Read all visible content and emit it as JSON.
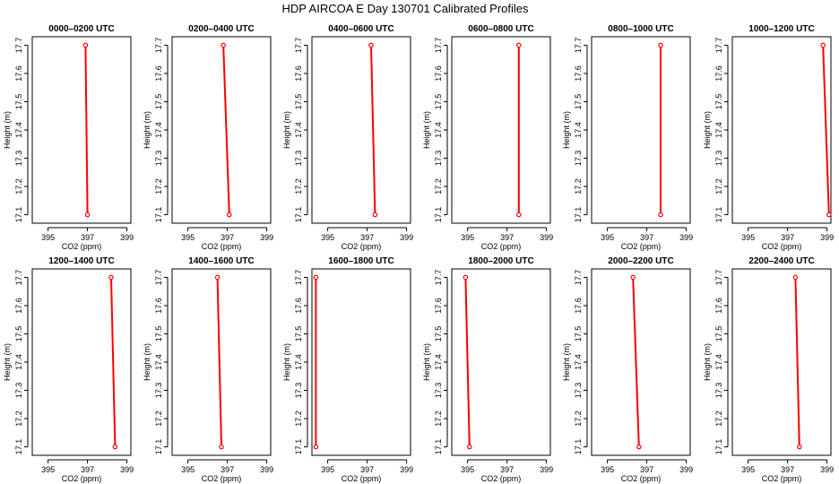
{
  "title": "HDP AIRCOA E  Day 130701  Calibrated Profiles",
  "colors": {
    "series": "#ff0000",
    "axis": "#000000",
    "background": "#ffffff"
  },
  "chart_data": {
    "type": "line",
    "layout": "small-multiples",
    "title": "HDP AIRCOA E  Day 130701  Calibrated Profiles",
    "xlabel": "CO2 (ppm)",
    "ylabel": "Height (m)",
    "xlim": [
      394.2,
      399.2
    ],
    "ylim": [
      17.07,
      17.73
    ],
    "xticks": [
      395,
      397,
      399
    ],
    "yticks": [
      17.1,
      17.2,
      17.3,
      17.4,
      17.5,
      17.6,
      17.7
    ],
    "xtick_labels": [
      "395",
      "397",
      "399"
    ],
    "ytick_labels": [
      "17.1",
      "17.2",
      "17.3",
      "17.4",
      "17.5",
      "17.6",
      "17.7"
    ],
    "grid": false,
    "panels": [
      {
        "title": "0000–0200 UTC",
        "points": [
          {
            "co2": 396.9,
            "height": 17.7
          },
          {
            "co2": 397.0,
            "height": 17.1
          }
        ]
      },
      {
        "title": "0200–0400 UTC",
        "points": [
          {
            "co2": 396.8,
            "height": 17.7
          },
          {
            "co2": 397.1,
            "height": 17.1
          }
        ]
      },
      {
        "title": "0400–0600 UTC",
        "points": [
          {
            "co2": 397.2,
            "height": 17.7
          },
          {
            "co2": 397.4,
            "height": 17.1
          }
        ]
      },
      {
        "title": "0600–0800 UTC",
        "points": [
          {
            "co2": 397.6,
            "height": 17.7
          },
          {
            "co2": 397.6,
            "height": 17.1
          }
        ]
      },
      {
        "title": "0800–1000 UTC",
        "points": [
          {
            "co2": 397.7,
            "height": 17.7
          },
          {
            "co2": 397.7,
            "height": 17.1
          }
        ]
      },
      {
        "title": "1000–1200 UTC",
        "points": [
          {
            "co2": 398.8,
            "height": 17.7
          },
          {
            "co2": 399.1,
            "height": 17.1
          }
        ]
      },
      {
        "title": "1200–1400 UTC",
        "points": [
          {
            "co2": 398.2,
            "height": 17.7
          },
          {
            "co2": 398.4,
            "height": 17.1
          }
        ]
      },
      {
        "title": "1400–1600 UTC",
        "points": [
          {
            "co2": 396.5,
            "height": 17.7
          },
          {
            "co2": 396.7,
            "height": 17.1
          }
        ]
      },
      {
        "title": "1600–1800 UTC",
        "points": [
          {
            "co2": 394.4,
            "height": 17.7
          },
          {
            "co2": 394.4,
            "height": 17.1
          }
        ]
      },
      {
        "title": "1800–2000 UTC",
        "points": [
          {
            "co2": 394.9,
            "height": 17.7
          },
          {
            "co2": 395.1,
            "height": 17.1
          }
        ]
      },
      {
        "title": "2000–2200 UTC",
        "points": [
          {
            "co2": 396.3,
            "height": 17.7
          },
          {
            "co2": 396.6,
            "height": 17.1
          }
        ]
      },
      {
        "title": "2200–2400 UTC",
        "points": [
          {
            "co2": 397.4,
            "height": 17.7
          },
          {
            "co2": 397.6,
            "height": 17.1
          }
        ]
      }
    ]
  }
}
